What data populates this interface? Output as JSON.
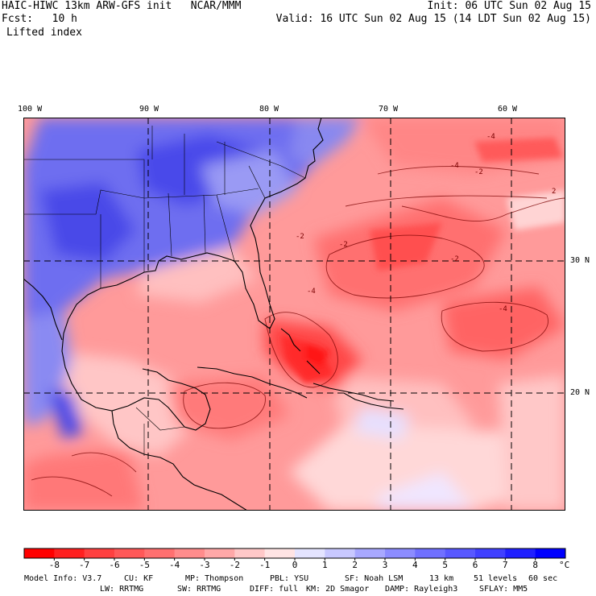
{
  "header": {
    "model_line": "HAIC-HIWC 13km ARW-GFS init   NCAR/MMM",
    "init": "Init: 06 UTC Sun 02 Aug 15",
    "fcst": "Fcst:   10 h",
    "valid": "Valid: 16 UTC Sun 02 Aug 15 (14 LDT Sun 02 Aug 15)",
    "field": "Lifted index"
  },
  "map": {
    "lon_labels": [
      "100 W",
      "90 W",
      "80 W",
      "70 W",
      "60 W"
    ],
    "lat_labels": [
      "30 N",
      "20 N"
    ],
    "contour_labels": [
      "-4",
      "-2",
      "-4",
      "-2",
      "-4",
      "-2",
      "2",
      "-2",
      "-4"
    ]
  },
  "colorbar": {
    "ticks": [
      "-8",
      "-7",
      "-6",
      "-5",
      "-4",
      "-3",
      "-2",
      "-1",
      "0",
      "1",
      "2",
      "3",
      "4",
      "5",
      "6",
      "7",
      "8"
    ],
    "unit": "°C",
    "colors": [
      "#ff0000",
      "#ff2020",
      "#ff4040",
      "#ff5858",
      "#ff7070",
      "#ff8c8c",
      "#ffa8a8",
      "#ffc8c8",
      "#ffe4e4",
      "#e4e4ff",
      "#c8c8ff",
      "#a8a8ff",
      "#8c8cff",
      "#7070ff",
      "#5858ff",
      "#4040ff",
      "#2020ff",
      "#0000ff"
    ]
  },
  "footer": {
    "line1": [
      "Model Info: V3.7",
      "CU: KF",
      "MP: Thompson",
      "PBL: YSU",
      "SF: Noah LSM",
      "13 km",
      "51 levels",
      "60 sec"
    ],
    "line2": [
      "LW: RRTMG",
      "SW: RRTMG",
      "DIFF: full",
      "KM: 2D Smagor",
      "DAMP: Rayleigh3",
      "SFLAY: MM5"
    ]
  }
}
